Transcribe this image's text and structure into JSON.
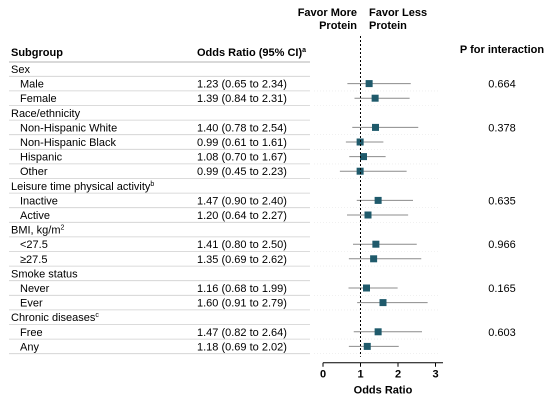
{
  "chart_data": {
    "type": "forest",
    "column_headers": {
      "subgroup": "Subgroup",
      "odds_ratio": "Odds Ratio (95% CI)",
      "odds_ratio_sup": "a",
      "p_interaction": "P for interaction"
    },
    "direction_labels": {
      "left": [
        "Favor More",
        "Protein"
      ],
      "right": [
        "Favor Less",
        "Protein"
      ]
    },
    "xlabel": "Odds Ratio",
    "xlim": [
      0,
      3.2
    ],
    "xticks": [
      "0",
      "1",
      "2",
      "3"
    ],
    "reference_line": 1,
    "marker_color": "#1f5a6b",
    "ci_color": "#8c8c8c",
    "groups": [
      {
        "name": "Sex",
        "sup": "",
        "p": "0.664",
        "rows": [
          {
            "label": "Male",
            "text": "1.23 (0.65 to 2.34)",
            "or": 1.23,
            "lo": 0.65,
            "hi": 2.34
          },
          {
            "label": "Female",
            "text": "1.39 (0.84 to 2.31)",
            "or": 1.39,
            "lo": 0.84,
            "hi": 2.31
          }
        ]
      },
      {
        "name": "Race/ethnicity",
        "sup": "",
        "p": "0.378",
        "rows": [
          {
            "label": "Non-Hispanic White",
            "text": "1.40 (0.78 to 2.54)",
            "or": 1.4,
            "lo": 0.78,
            "hi": 2.54
          },
          {
            "label": "Non-Hispanic Black",
            "text": "0.99 (0.61 to 1.61)",
            "or": 0.99,
            "lo": 0.61,
            "hi": 1.61
          },
          {
            "label": "Hispanic",
            "text": "1.08 (0.70 to 1.67)",
            "or": 1.08,
            "lo": 0.7,
            "hi": 1.67
          },
          {
            "label": "Other",
            "text": "0.99 (0.45 to 2.23)",
            "or": 0.99,
            "lo": 0.45,
            "hi": 2.23
          }
        ]
      },
      {
        "name": "Leisure time physical activity",
        "sup": "b",
        "p": "0.635",
        "rows": [
          {
            "label": "Inactive",
            "text": "1.47 (0.90 to 2.40)",
            "or": 1.47,
            "lo": 0.9,
            "hi": 2.4
          },
          {
            "label": "Active",
            "text": "1.20 (0.64 to 2.27)",
            "or": 1.2,
            "lo": 0.64,
            "hi": 2.27
          }
        ]
      },
      {
        "name": "BMI, kg/m",
        "sup": "2",
        "p": "0.966",
        "rows": [
          {
            "label": "<27.5",
            "text": "1.41 (0.80 to 2.50)",
            "or": 1.41,
            "lo": 0.8,
            "hi": 2.5
          },
          {
            "label": "≥27.5",
            "text": "1.35 (0.69 to 2.62)",
            "or": 1.35,
            "lo": 0.69,
            "hi": 2.62
          }
        ]
      },
      {
        "name": "Smoke status",
        "sup": "",
        "p": "0.165",
        "rows": [
          {
            "label": "Never",
            "text": "1.16 (0.68 to 1.99)",
            "or": 1.16,
            "lo": 0.68,
            "hi": 1.99
          },
          {
            "label": "Ever",
            "text": "1.60 (0.91 to 2.79)",
            "or": 1.6,
            "lo": 0.91,
            "hi": 2.79
          }
        ]
      },
      {
        "name": "Chronic diseases",
        "sup": "c",
        "p": "0.603",
        "rows": [
          {
            "label": "Free",
            "text": "1.47 (0.82 to 2.64)",
            "or": 1.47,
            "lo": 0.82,
            "hi": 2.64
          },
          {
            "label": "Any",
            "text": "1.18 (0.69 to 2.02)",
            "or": 1.18,
            "lo": 0.69,
            "hi": 2.02
          }
        ]
      }
    ]
  }
}
